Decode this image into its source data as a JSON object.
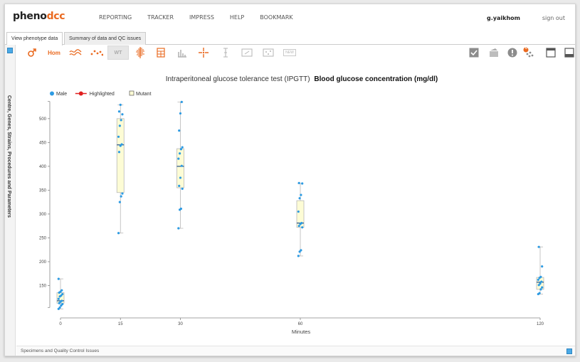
{
  "logo": {
    "part1": "pheno",
    "part2": "dcc"
  },
  "nav": [
    "REPORTING",
    "TRACKER",
    "IMPRESS",
    "HELP",
    "BOOKMARK"
  ],
  "user": {
    "name": "g.yaikhom",
    "signout": "sign out"
  },
  "tabs": [
    "View phenotype data",
    "Summary of data and QC issues"
  ],
  "sidebar": {
    "label": "Centre, Genes, Strains, Procedures and Parameters"
  },
  "toolbar": {
    "hom_label": "Hom",
    "wt_label": "WT",
    "new_label": "NEW",
    "badge": "0",
    "accent": "#ea6a20"
  },
  "bottom": {
    "label": "Specimens and Quality Control Issues"
  },
  "chart_data": {
    "type": "boxplot",
    "title_prefix": "Intraperitoneal glucose tolerance test (IPGTT)",
    "title_param": "Blood glucose concentration (mg/dl)",
    "xlabel": "Minutes",
    "ylabel": "",
    "ylim": [
      100,
      540
    ],
    "yticks": [
      150,
      200,
      250,
      300,
      350,
      400,
      450,
      500
    ],
    "xticks": [
      0,
      15,
      30,
      60,
      120
    ],
    "legend": [
      {
        "label": "Male",
        "kind": "dot",
        "color": "#2d9be3"
      },
      {
        "label": "Highlighted",
        "kind": "line-dot",
        "color": "#e02020"
      },
      {
        "label": "Mutant",
        "kind": "box",
        "color": "#fdfcd5"
      }
    ],
    "boxes": [
      {
        "x": 0,
        "whisker_low": 101,
        "q1": 113,
        "median": 118,
        "q3": 135,
        "whisker_high": 164,
        "points": [
          101,
          104,
          108,
          111,
          113,
          116,
          118,
          122,
          127,
          129,
          132,
          135,
          137,
          140,
          164
        ]
      },
      {
        "x": 15,
        "whisker_low": 260,
        "q1": 345,
        "median": 445,
        "q3": 500,
        "whisker_high": 529,
        "points": [
          260,
          325,
          337,
          343,
          430,
          443,
          446,
          462,
          485,
          497,
          509,
          515,
          529
        ]
      },
      {
        "x": 30,
        "whisker_low": 270,
        "q1": 355,
        "median": 400,
        "q3": 437,
        "whisker_high": 535,
        "points": [
          270,
          309,
          311,
          353,
          359,
          376,
          401,
          416,
          427,
          436,
          440,
          475,
          511,
          535
        ]
      },
      {
        "x": 60,
        "whisker_low": 212,
        "q1": 272,
        "median": 281,
        "q3": 328,
        "whisker_high": 364,
        "points": [
          212,
          221,
          224,
          272,
          275,
          279,
          281,
          305,
          333,
          340,
          364,
          365
        ]
      },
      {
        "x": 120,
        "whisker_low": 132,
        "q1": 142,
        "median": 157,
        "q3": 167,
        "whisker_high": 231,
        "points": [
          132,
          134,
          142,
          146,
          151,
          154,
          158,
          162,
          166,
          168,
          190,
          231
        ]
      }
    ],
    "colors": {
      "box_fill": "#fdfcd5",
      "box_stroke": "#b8b8b8",
      "median": "#1f4e8c",
      "point": "#2d9be3",
      "axis": "#888"
    }
  }
}
